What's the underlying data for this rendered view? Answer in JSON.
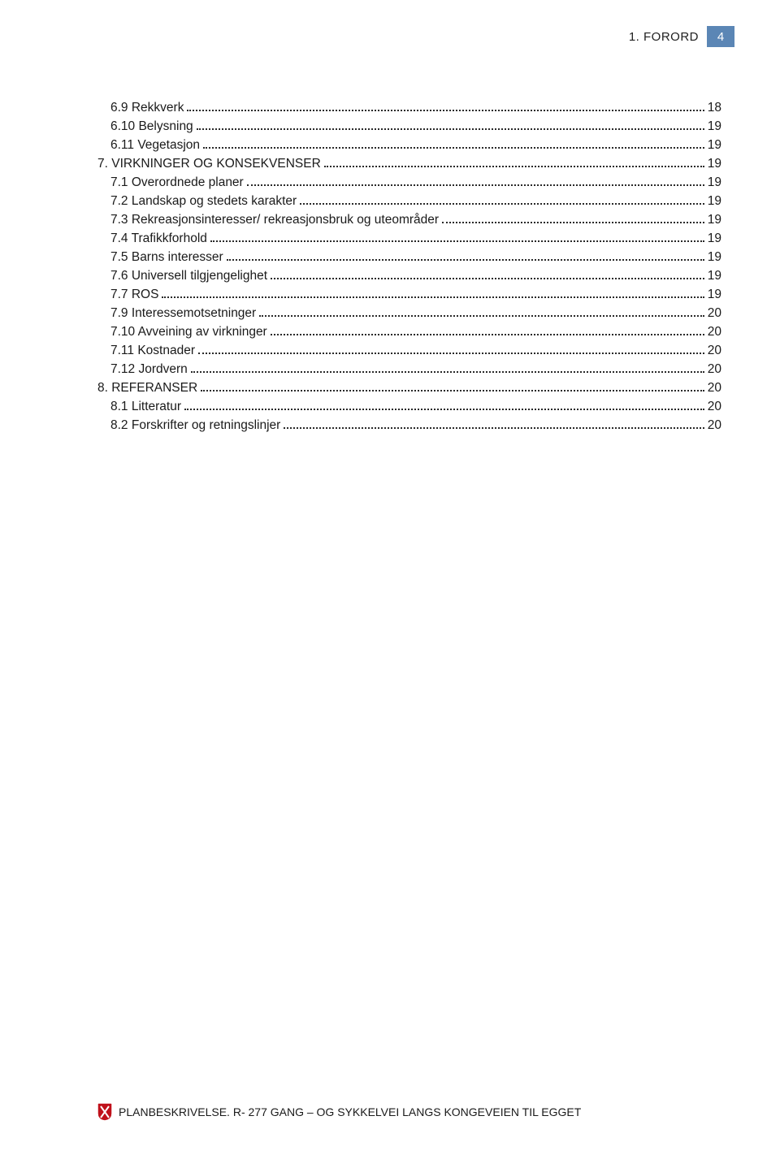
{
  "header": {
    "section_label": "1. FORORD",
    "page_number": "4"
  },
  "colors": {
    "badge_bg": "#5b86b5",
    "badge_fg": "#ffffff",
    "text": "#1a1a1a",
    "shield_red": "#c0111b",
    "shield_white": "#ffffff"
  },
  "toc": {
    "entries": [
      {
        "level": 1,
        "label": "6.9 Rekkverk",
        "page": "18"
      },
      {
        "level": 1,
        "label": "6.10 Belysning",
        "page": "19"
      },
      {
        "level": 1,
        "label": "6.11 Vegetasjon",
        "page": "19"
      },
      {
        "level": 0,
        "label": "7. VIRKNINGER OG KONSEKVENSER",
        "page": "19"
      },
      {
        "level": 1,
        "label": "7.1 Overordnede planer",
        "page": "19"
      },
      {
        "level": 1,
        "label": "7.2 Landskap og stedets karakter",
        "page": "19"
      },
      {
        "level": 1,
        "label": "7.3 Rekreasjonsinteresser/ rekreasjonsbruk og uteområder",
        "page": "19"
      },
      {
        "level": 1,
        "label": "7.4 Trafikkforhold",
        "page": "19"
      },
      {
        "level": 1,
        "label": "7.5 Barns interesser",
        "page": "19"
      },
      {
        "level": 1,
        "label": "7.6 Universell tilgjengelighet",
        "page": "19"
      },
      {
        "level": 1,
        "label": "7.7 ROS",
        "page": "19"
      },
      {
        "level": 1,
        "label": "7.9 Interessemotsetninger",
        "page": "20"
      },
      {
        "level": 1,
        "label": "7.10 Avveining av virkninger",
        "page": "20"
      },
      {
        "level": 1,
        "label": "7.11 Kostnader",
        "page": "20"
      },
      {
        "level": 1,
        "label": "7.12 Jordvern",
        "page": "20"
      },
      {
        "level": 0,
        "label": "8. REFERANSER",
        "page": "20"
      },
      {
        "level": 1,
        "label": "8.1 Litteratur",
        "page": "20"
      },
      {
        "level": 1,
        "label": "8.2 Forskrifter og retningslinjer",
        "page": "20"
      }
    ]
  },
  "footer": {
    "text": "PLANBESKRIVELSE. R- 277 GANG – OG SYKKELVEI LANGS KONGEVEIEN TIL EGGET"
  }
}
